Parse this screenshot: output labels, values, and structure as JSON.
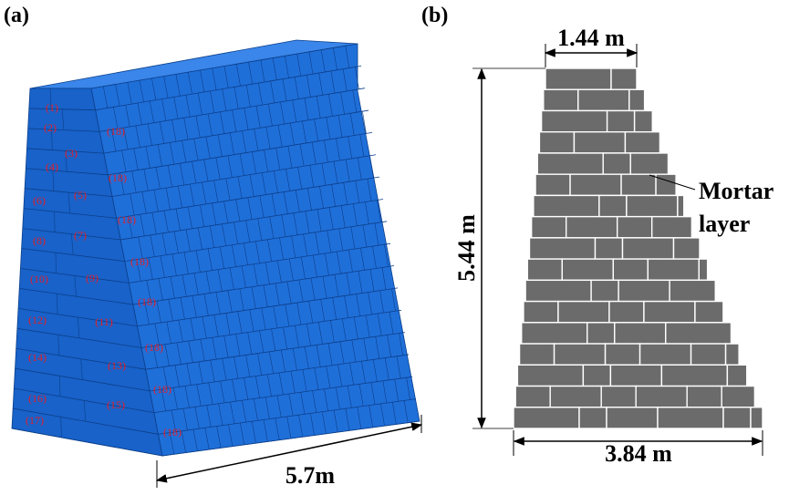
{
  "panel_a": {
    "label": "(a)",
    "block_labels": [
      "(1)",
      "(2)",
      "(3)",
      "(4)",
      "(5)",
      "(6)",
      "(7)",
      "(8)",
      "(9)",
      "(10)",
      "(11)",
      "(12)",
      "(13)",
      "(14)",
      "(15)",
      "(16)",
      "(17)"
    ],
    "course_labels": [
      "(18)",
      "(18)",
      "(18)",
      "(18)",
      "(18)",
      "(18)",
      "(18)",
      "(18)"
    ],
    "length": "5.7m"
  },
  "panel_b": {
    "label": "(b)",
    "top_width": "1.44 m",
    "height": "5.44 m",
    "bottom_width": "3.84 m",
    "mortar_label": [
      "Mortar",
      "layer"
    ]
  }
}
